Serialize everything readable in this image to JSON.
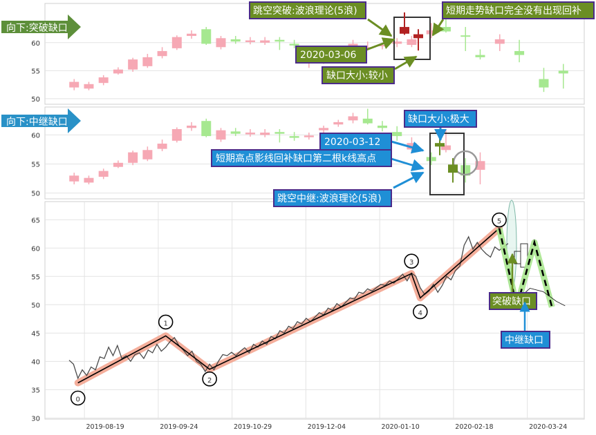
{
  "chart_data": [
    {
      "type": "candlestick",
      "panel_label": "向下:突破缺口",
      "yticks": [
        50,
        55,
        60
      ],
      "ylim": [
        49,
        67
      ],
      "x_index_range": [
        0,
        62
      ],
      "candles": [
        {
          "i": 3,
          "o": 52,
          "c": 53,
          "h": 53.5,
          "l": 51.5
        },
        {
          "i": 6,
          "o": 51.8,
          "c": 52.6,
          "h": 53,
          "l": 51.5
        },
        {
          "i": 9,
          "o": 52.8,
          "c": 53.8,
          "h": 54.2,
          "l": 52.4
        },
        {
          "i": 12,
          "o": 54.5,
          "c": 55.2,
          "h": 55.6,
          "l": 54.3
        },
        {
          "i": 15,
          "o": 55.2,
          "c": 57.0,
          "h": 57.3,
          "l": 54.8
        },
        {
          "i": 18,
          "o": 55.8,
          "c": 57.4,
          "h": 58.0,
          "l": 55.5
        },
        {
          "i": 21,
          "o": 57.6,
          "c": 58.5,
          "h": 59.2,
          "l": 57.2
        },
        {
          "i": 24,
          "o": 59.0,
          "c": 61.0,
          "h": 61.3,
          "l": 58.7
        },
        {
          "i": 27,
          "o": 61.2,
          "c": 61.6,
          "h": 62.2,
          "l": 60.7
        },
        {
          "i": 30,
          "o": 62.4,
          "c": 59.8,
          "h": 62.8,
          "l": 59.6
        },
        {
          "i": 33,
          "o": 59.2,
          "c": 60.8,
          "h": 61.2,
          "l": 58.8
        },
        {
          "i": 36,
          "o": 60.6,
          "c": 60.2,
          "h": 61.2,
          "l": 59.8
        },
        {
          "i": 39,
          "o": 60.1,
          "c": 60.4,
          "h": 61.0,
          "l": 59.7
        },
        {
          "i": 42,
          "o": 60.0,
          "c": 60.4,
          "h": 61.0,
          "l": 59.6
        },
        {
          "i": 45,
          "o": 60.5,
          "c": 60.2,
          "h": 61.0,
          "l": 58.7
        },
        {
          "i": 48,
          "o": 59.8,
          "c": 59.5,
          "h": 60.5,
          "l": 59.0
        },
        {
          "i": 51,
          "o": 56.5,
          "c": 58.5,
          "h": 59.0,
          "l": 55.5
        },
        {
          "i": 54,
          "o": 56.8,
          "c": 58.0,
          "h": 58.5,
          "l": 56.2
        },
        {
          "i": 57,
          "o": 58.0,
          "c": 58.3,
          "h": 59.0,
          "l": 57.4
        },
        {
          "i": 60,
          "o": 59.2,
          "c": 59.8,
          "h": 60.5,
          "l": 58.5
        },
        {
          "i": 63,
          "o": 59.0,
          "c": 59.2,
          "h": 60.2,
          "l": 58.6
        },
        {
          "i": 66,
          "o": 59.4,
          "c": 59.6,
          "h": 60.0,
          "l": 58.8
        },
        {
          "i": 69,
          "o": 59.8,
          "c": 60.2,
          "h": 60.8,
          "l": 59.2
        },
        {
          "i": 72,
          "o": 59.6,
          "c": 60.6,
          "h": 61.2,
          "l": 59.2
        },
        {
          "i": 76,
          "o": 61.5,
          "c": 62.2,
          "h": 63.5,
          "l": 60.8
        },
        {
          "i": 79,
          "o": 62.8,
          "c": 62.0,
          "h": 64.8,
          "l": 61.8
        },
        {
          "i": 83,
          "o": 61.3,
          "c": 61.2,
          "h": 62.8,
          "l": 58.5
        },
        {
          "i": 86,
          "o": 57.8,
          "c": 57.4,
          "h": 58.8,
          "l": 57.0
        },
        {
          "i": 90,
          "o": 59.8,
          "c": 60.6,
          "h": 61.5,
          "l": 58.5
        },
        {
          "i": 94,
          "o": 58.5,
          "c": 57.8,
          "h": 60.5,
          "l": 56.5
        },
        {
          "i": 99,
          "o": 53.5,
          "c": 52.0,
          "h": 55.5,
          "l": 51.2
        },
        {
          "i": 103,
          "o": 55.0,
          "c": 54.5,
          "h": 56.2,
          "l": 51.8
        }
      ]
    },
    {
      "type": "candlestick",
      "panel_label": "向下:中继缺口",
      "yticks": [
        50,
        55,
        60
      ],
      "ylim": [
        49,
        64.8
      ],
      "candles": [
        {
          "i": 3,
          "o": 52,
          "c": 53,
          "h": 53.5,
          "l": 51.5
        },
        {
          "i": 6,
          "o": 51.8,
          "c": 52.6,
          "h": 53,
          "l": 51.5
        },
        {
          "i": 9,
          "o": 52.8,
          "c": 53.8,
          "h": 54.2,
          "l": 52.4
        },
        {
          "i": 12,
          "o": 54.5,
          "c": 55.2,
          "h": 55.6,
          "l": 54.3
        },
        {
          "i": 15,
          "o": 55.2,
          "c": 57.0,
          "h": 57.3,
          "l": 54.8
        },
        {
          "i": 18,
          "o": 55.8,
          "c": 57.4,
          "h": 58.0,
          "l": 55.5
        },
        {
          "i": 21,
          "o": 57.6,
          "c": 58.5,
          "h": 59.2,
          "l": 57.2
        },
        {
          "i": 24,
          "o": 59.0,
          "c": 61.0,
          "h": 61.3,
          "l": 58.7
        },
        {
          "i": 27,
          "o": 61.2,
          "c": 61.6,
          "h": 62.2,
          "l": 60.7
        },
        {
          "i": 30,
          "o": 62.4,
          "c": 59.8,
          "h": 62.8,
          "l": 59.6
        },
        {
          "i": 33,
          "o": 59.2,
          "c": 60.8,
          "h": 61.2,
          "l": 58.8
        },
        {
          "i": 36,
          "o": 60.6,
          "c": 60.2,
          "h": 61.2,
          "l": 59.8
        },
        {
          "i": 39,
          "o": 60.1,
          "c": 60.4,
          "h": 61.0,
          "l": 59.7
        },
        {
          "i": 42,
          "o": 60.0,
          "c": 60.4,
          "h": 61.0,
          "l": 59.6
        },
        {
          "i": 45,
          "o": 60.5,
          "c": 60.2,
          "h": 61.0,
          "l": 58.7
        },
        {
          "i": 48,
          "o": 59.8,
          "c": 59.5,
          "h": 60.5,
          "l": 59.0
        },
        {
          "i": 51,
          "o": 59.6,
          "c": 59.9,
          "h": 60.4,
          "l": 59.2
        },
        {
          "i": 54,
          "o": 60.8,
          "c": 61.2,
          "h": 61.6,
          "l": 60.4
        },
        {
          "i": 57,
          "o": 61.8,
          "c": 62.2,
          "h": 62.6,
          "l": 61.4
        },
        {
          "i": 60,
          "o": 62.5,
          "c": 63.2,
          "h": 63.8,
          "l": 62.0
        },
        {
          "i": 63,
          "o": 62.8,
          "c": 62.0,
          "h": 64.5,
          "l": 61.8
        },
        {
          "i": 66,
          "o": 61.6,
          "c": 61.2,
          "h": 62.4,
          "l": 60.6
        },
        {
          "i": 69,
          "o": 60.5,
          "c": 59.8,
          "h": 61.5,
          "l": 59.0
        },
        {
          "i": 72,
          "o": 57.5,
          "c": 58.6,
          "h": 59.6,
          "l": 56.8
        },
        {
          "i": 76,
          "o": 56.2,
          "c": 55.5,
          "h": 57.0,
          "l": 54.8
        },
        {
          "i": 79,
          "o": 57.4,
          "c": 58.2,
          "h": 61.0,
          "l": 57.0
        },
        {
          "i": 83,
          "o": 54.8,
          "c": 53.0,
          "h": 56.0,
          "l": 51.8
        },
        {
          "i": 86,
          "o": 54.0,
          "c": 55.5,
          "h": 57.0,
          "l": 51.5
        }
      ]
    },
    {
      "type": "line",
      "yticks": [
        30,
        35,
        40,
        45,
        50,
        55,
        60,
        65
      ],
      "ylim": [
        29.8,
        68.2
      ],
      "x_index_range": [
        0,
        100
      ],
      "xticks": [
        {
          "i": 4,
          "label": "2019-08-19"
        },
        {
          "i": 21,
          "label": "2019-09-24"
        },
        {
          "i": 38,
          "label": "2019-10-29"
        },
        {
          "i": 55,
          "label": "2019-12-04"
        },
        {
          "i": 72,
          "label": "2020-01-10"
        },
        {
          "i": 89,
          "label": "2020-02-18"
        },
        {
          "i": 106,
          "label": "2020-03-24"
        }
      ],
      "price": [
        [
          0,
          40.2
        ],
        [
          1,
          39.5
        ],
        [
          2,
          37.0
        ],
        [
          3,
          38.5
        ],
        [
          4,
          37.5
        ],
        [
          5,
          39.0
        ],
        [
          6,
          38.5
        ],
        [
          7,
          40.8
        ],
        [
          8,
          40.5
        ],
        [
          9,
          42.5
        ],
        [
          10,
          41.0
        ],
        [
          11,
          42.8
        ],
        [
          12,
          40.5
        ],
        [
          13,
          41.0
        ],
        [
          14,
          40.0
        ],
        [
          15,
          41.2
        ],
        [
          16,
          41.5
        ],
        [
          17,
          40.5
        ],
        [
          18,
          42.0
        ],
        [
          19,
          41.5
        ],
        [
          20,
          43.0
        ],
        [
          21,
          41.8
        ],
        [
          22,
          42.5
        ],
        [
          23,
          43.5
        ],
        [
          24,
          44.2
        ],
        [
          25,
          42.8
        ],
        [
          26,
          42.0
        ],
        [
          27,
          41.0
        ],
        [
          28,
          41.8
        ],
        [
          29,
          40.0
        ],
        [
          30,
          39.5
        ],
        [
          31,
          38.2
        ],
        [
          32,
          39.5
        ],
        [
          33,
          38.5
        ],
        [
          34,
          40.0
        ],
        [
          35,
          41.2
        ],
        [
          36,
          41.0
        ],
        [
          37,
          41.6
        ],
        [
          38,
          41.0
        ],
        [
          39,
          41.8
        ],
        [
          40,
          42.4
        ],
        [
          41,
          41.5
        ],
        [
          42,
          43.0
        ],
        [
          43,
          42.5
        ],
        [
          44,
          43.6
        ],
        [
          45,
          43.0
        ],
        [
          46,
          44.4
        ],
        [
          47,
          44.0
        ],
        [
          48,
          45.4
        ],
        [
          49,
          45.0
        ],
        [
          50,
          46.2
        ],
        [
          51,
          45.8
        ],
        [
          52,
          47.0
        ],
        [
          53,
          46.6
        ],
        [
          54,
          47.6
        ],
        [
          55,
          47.0
        ],
        [
          56,
          47.8
        ],
        [
          57,
          48.6
        ],
        [
          58,
          48.2
        ],
        [
          59,
          49.4
        ],
        [
          60,
          49.0
        ],
        [
          61,
          50.2
        ],
        [
          62,
          49.6
        ],
        [
          63,
          50.4
        ],
        [
          64,
          51.2
        ],
        [
          65,
          51.0
        ],
        [
          66,
          52.2
        ],
        [
          67,
          52.0
        ],
        [
          68,
          52.8
        ],
        [
          69,
          52.4
        ],
        [
          70,
          53.0
        ],
        [
          71,
          53.6
        ],
        [
          72,
          53.4
        ],
        [
          73,
          54.2
        ],
        [
          74,
          53.8
        ],
        [
          75,
          54.6
        ],
        [
          76,
          55.4
        ],
        [
          77,
          54.2
        ],
        [
          78,
          55.6
        ],
        [
          79,
          55.0
        ],
        [
          80,
          53.0
        ],
        [
          81,
          51.8
        ],
        [
          82,
          52.4
        ],
        [
          83,
          53.6
        ],
        [
          84,
          52.2
        ],
        [
          85,
          53.4
        ],
        [
          86,
          55.0
        ],
        [
          87,
          54.4
        ],
        [
          88,
          56.0
        ],
        [
          89,
          56.8
        ],
        [
          90,
          60.5
        ],
        [
          91,
          62.0
        ],
        [
          92,
          59.8
        ],
        [
          93,
          61.0
        ],
        [
          94,
          59.8
        ],
        [
          95,
          59.0
        ],
        [
          96,
          58.4
        ],
        [
          97,
          60.2
        ],
        [
          98,
          59.6
        ],
        [
          99,
          60.2
        ],
        [
          100,
          60.8
        ]
      ],
      "wave_points": [
        {
          "i": 2,
          "v": 36.2,
          "label": "0"
        },
        {
          "i": 22,
          "v": 44.5,
          "label": "1"
        },
        {
          "i": 32,
          "v": 38.6,
          "label": "2"
        },
        {
          "i": 78,
          "v": 55.5,
          "label": "3"
        },
        {
          "i": 80,
          "v": 51.2,
          "label": "4"
        },
        {
          "i": 98,
          "v": 63.5,
          "label": "5"
        }
      ],
      "projection": [
        {
          "i": 102,
          "v": 49.6
        },
        {
          "i": 106,
          "v": 61.0
        },
        {
          "i": 110,
          "v": 49.6
        }
      ],
      "arc": [
        [
          102,
          50.8
        ],
        [
          105,
          52.9
        ],
        [
          108,
          52.3
        ],
        [
          111,
          50.6
        ],
        [
          113,
          49.8
        ]
      ],
      "colors": {
        "price": "#4a4a4a",
        "trend": "#000000",
        "halo": "#f2a08a",
        "projection": "#000000",
        "projection_glow": "#a8e68e"
      }
    }
  ],
  "colors": {
    "up_candle": "#f6a8b4",
    "down_candle": "#a6e890",
    "gap_up": "#b22222",
    "gap_down": "#6b8e23",
    "green_tag": "#6b8e23",
    "blue_tag": "#1f8fd6",
    "tag_border": "#4b2b8a",
    "panel_arrow_green": "#5d8f3a",
    "panel_arrow_blue": "#2991c7"
  },
  "panel1": {
    "label": "向下:突破缺口",
    "zoom_candles": [
      {
        "o": 62.8,
        "c": 61.6,
        "h": 65.4,
        "l": 61.4
      },
      {
        "o": 60.8,
        "c": 61.5,
        "h": 62.4,
        "l": 58.6
      }
    ],
    "callouts": {
      "top_left": "跳空突破:波浪理论(5浪)",
      "top_right": "短期走势缺口完全没有出现回补",
      "date": "2020-03-06",
      "gap_size": "缺口大小:较小"
    }
  },
  "panel2": {
    "label": "向下:中继缺口",
    "zoom_candles": [
      {
        "o": 58.0,
        "c": 58.6,
        "h": 60.5,
        "l": 56.5
      },
      {
        "o": 53.5,
        "c": 54.9,
        "h": 56.0,
        "l": 51.8
      }
    ],
    "callouts": {
      "gap_size": "缺口大小:极大",
      "date": "2020-03-12",
      "note": "短期高点影线回补缺口第二根k线高点",
      "wave": "跳空中继:波浪理论(5浪)"
    }
  },
  "panel3": {
    "breakout_label": "突破缺口",
    "relay_label": "中继缺口"
  }
}
